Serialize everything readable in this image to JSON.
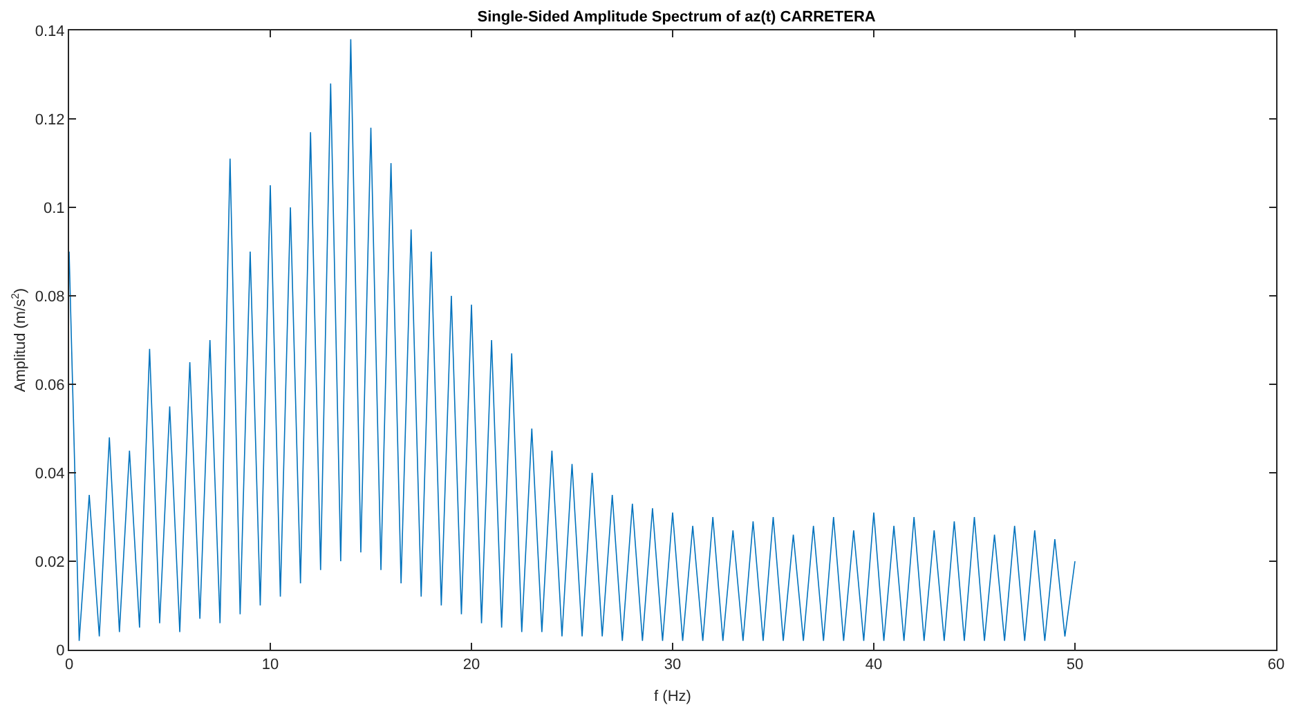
{
  "chart_data": {
    "type": "line",
    "title": "Single-Sided Amplitude Spectrum of az(t) CARRETERA",
    "xlabel": "f (Hz)",
    "ylabel": "Amplitud (m/s$^{2}$)",
    "x": [
      0,
      0.5,
      1,
      1.5,
      2,
      2.5,
      3,
      3.5,
      4,
      4.5,
      5,
      5.5,
      6,
      6.5,
      7,
      7.5,
      8,
      8.5,
      9,
      9.5,
      10,
      10.5,
      11,
      11.5,
      12,
      12.5,
      13,
      13.5,
      14,
      14.5,
      15,
      15.5,
      16,
      16.5,
      17,
      17.5,
      18,
      18.5,
      19,
      19.5,
      20,
      20.5,
      21,
      21.5,
      22,
      22.5,
      23,
      23.5,
      24,
      24.5,
      25,
      25.5,
      26,
      26.5,
      27,
      27.5,
      28,
      28.5,
      29,
      29.5,
      30,
      30.5,
      31,
      31.5,
      32,
      32.5,
      33,
      33.5,
      34,
      34.5,
      35,
      35.5,
      36,
      36.5,
      37,
      37.5,
      38,
      38.5,
      39,
      39.5,
      40,
      40.5,
      41,
      41.5,
      42,
      42.5,
      43,
      43.5,
      44,
      44.5,
      45,
      45.5,
      46,
      46.5,
      47,
      47.5,
      48,
      48.5,
      49,
      49.5,
      50
    ],
    "series": [
      {
        "color": "#0072bd",
        "values": [
          0.09,
          0.002,
          0.035,
          0.003,
          0.048,
          0.004,
          0.045,
          0.005,
          0.068,
          0.006,
          0.055,
          0.004,
          0.065,
          0.007,
          0.07,
          0.006,
          0.111,
          0.008,
          0.09,
          0.01,
          0.105,
          0.012,
          0.1,
          0.015,
          0.117,
          0.018,
          0.128,
          0.02,
          0.138,
          0.022,
          0.118,
          0.018,
          0.11,
          0.015,
          0.095,
          0.012,
          0.09,
          0.01,
          0.08,
          0.008,
          0.078,
          0.006,
          0.07,
          0.005,
          0.067,
          0.004,
          0.05,
          0.004,
          0.045,
          0.003,
          0.042,
          0.003,
          0.04,
          0.003,
          0.035,
          0.002,
          0.033,
          0.002,
          0.032,
          0.002,
          0.031,
          0.002,
          0.028,
          0.002,
          0.03,
          0.002,
          0.027,
          0.002,
          0.029,
          0.002,
          0.03,
          0.002,
          0.026,
          0.002,
          0.028,
          0.002,
          0.03,
          0.002,
          0.027,
          0.002,
          0.031,
          0.002,
          0.028,
          0.002,
          0.03,
          0.002,
          0.027,
          0.002,
          0.029,
          0.002,
          0.03,
          0.002,
          0.026,
          0.002,
          0.028,
          0.002,
          0.027,
          0.002,
          0.025,
          0.003,
          0.02
        ]
      }
    ],
    "xlim": [
      0,
      60
    ],
    "xticks": [
      0,
      10,
      20,
      30,
      40,
      50,
      60
    ],
    "ylim": [
      0,
      0.14
    ],
    "yticks": [
      0,
      0.02,
      0.04,
      0.06,
      0.08,
      0.1,
      0.12,
      0.14
    ],
    "grid": false,
    "marker": "none",
    "line_style": "solid"
  }
}
